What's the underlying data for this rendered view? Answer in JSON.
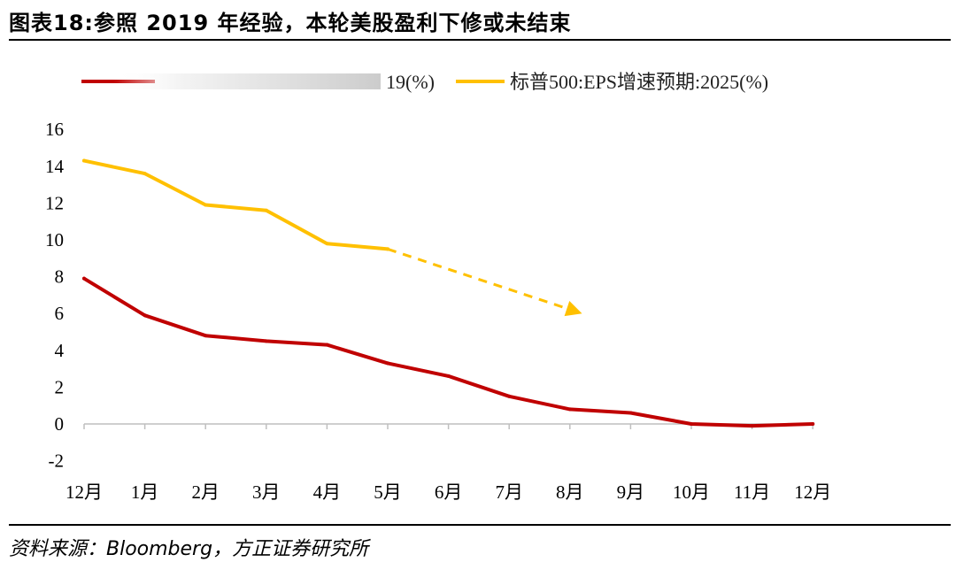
{
  "header": {
    "title": "图表18:参照 2019 年经验，本轮美股盈利下修或未结束"
  },
  "footer": {
    "source": "资料来源：Bloomberg，方正证券研究所"
  },
  "colors": {
    "red": "#C00000",
    "yellow": "#FFC000",
    "axis": "#bfbfbf"
  },
  "chart_data": {
    "type": "line",
    "categories": [
      "12月",
      "1月",
      "2月",
      "3月",
      "4月",
      "5月",
      "6月",
      "7月",
      "8月",
      "9月",
      "10月",
      "11月",
      "12月"
    ],
    "ylim": [
      -2,
      16
    ],
    "yticks": [
      "-2",
      "0",
      "2",
      "4",
      "6",
      "8",
      "10",
      "12",
      "14",
      "16"
    ],
    "series": [
      {
        "name": "19(%)",
        "color": "#C00000",
        "values": [
          7.9,
          5.9,
          4.8,
          4.5,
          4.3,
          3.3,
          2.6,
          1.5,
          0.8,
          0.6,
          0.0,
          -0.1,
          0.0
        ]
      },
      {
        "name": "标普500:EPS增速预期:2025(%)",
        "color": "#FFC000",
        "values": [
          14.3,
          13.6,
          11.9,
          11.6,
          9.8,
          9.5,
          null,
          null,
          null,
          null,
          null,
          null,
          null
        ]
      }
    ],
    "projection": {
      "from": [
        5,
        9.5
      ],
      "to": [
        8.2,
        6.0
      ],
      "style": "dashed-arrow",
      "color": "#FFC000"
    },
    "legend": "top"
  }
}
